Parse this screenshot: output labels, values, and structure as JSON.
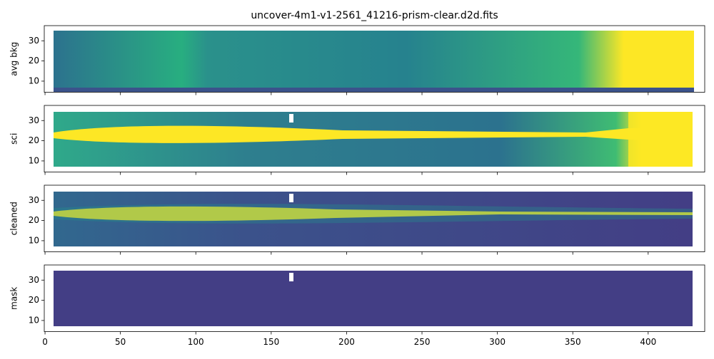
{
  "chart_data": [
    {
      "type": "image",
      "title": "uncover-4m1-v1-2561_41216-prism-clear.d2d.fits",
      "ylabel": "avg bkg",
      "ylim": [
        4.5,
        37.5
      ],
      "yticks": [
        10,
        20,
        30
      ]
    },
    {
      "type": "image",
      "ylabel": "sci",
      "ylim": [
        4.5,
        37.5
      ],
      "yticks": [
        10,
        20,
        30
      ]
    },
    {
      "type": "image",
      "ylabel": "cleaned",
      "ylim": [
        4.5,
        37.5
      ],
      "yticks": [
        10,
        20,
        30
      ]
    },
    {
      "type": "image",
      "ylabel": "mask",
      "ylim": [
        4.5,
        37.5
      ],
      "yticks": [
        10,
        20,
        30
      ],
      "xlim": [
        -0.5,
        437.5
      ],
      "xticks": [
        0,
        50,
        100,
        150,
        200,
        250,
        300,
        350,
        400
      ]
    }
  ]
}
